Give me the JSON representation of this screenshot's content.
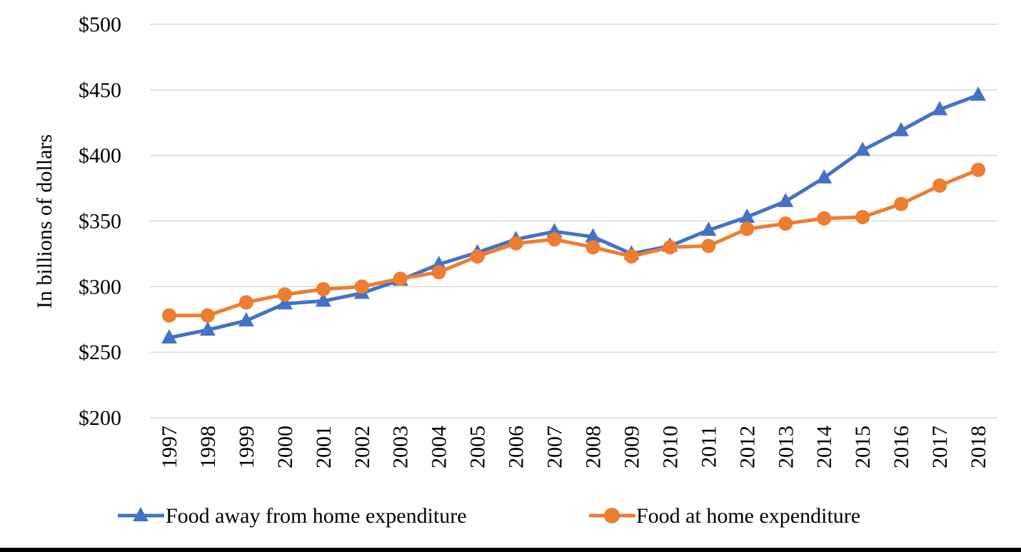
{
  "chart_data": {
    "type": "line",
    "title": "",
    "xlabel": "",
    "ylabel": "In billions of dollars",
    "ylim": [
      200,
      500
    ],
    "yticks": [
      "$200",
      "$250",
      "$300",
      "$350",
      "$400",
      "$450",
      "$500"
    ],
    "ytick_values": [
      200,
      250,
      300,
      350,
      400,
      450,
      500
    ],
    "grid": "horizontal",
    "legend": "bottom",
    "categories": [
      "1997",
      "1998",
      "1999",
      "2000",
      "2001",
      "2002",
      "2003",
      "2004",
      "2005",
      "2006",
      "2007",
      "2008",
      "2009",
      "2010",
      "2011",
      "2012",
      "2013",
      "2014",
      "2015",
      "2016",
      "2017",
      "2018"
    ],
    "series": [
      {
        "name": "Food away from home expenditure",
        "color": "#4472C4",
        "marker": "triangle",
        "values": [
          261,
          267,
          274,
          287,
          289,
          295,
          305,
          317,
          326,
          336,
          342,
          338,
          325,
          331,
          343,
          353,
          365,
          383,
          404,
          419,
          435,
          446
        ]
      },
      {
        "name": "Food at home expenditure",
        "color": "#ED7D31",
        "marker": "circle",
        "values": [
          278,
          278,
          288,
          294,
          298,
          300,
          306,
          311,
          323,
          333,
          336,
          330,
          323,
          330,
          331,
          344,
          348,
          352,
          353,
          363,
          377,
          389
        ]
      }
    ]
  }
}
